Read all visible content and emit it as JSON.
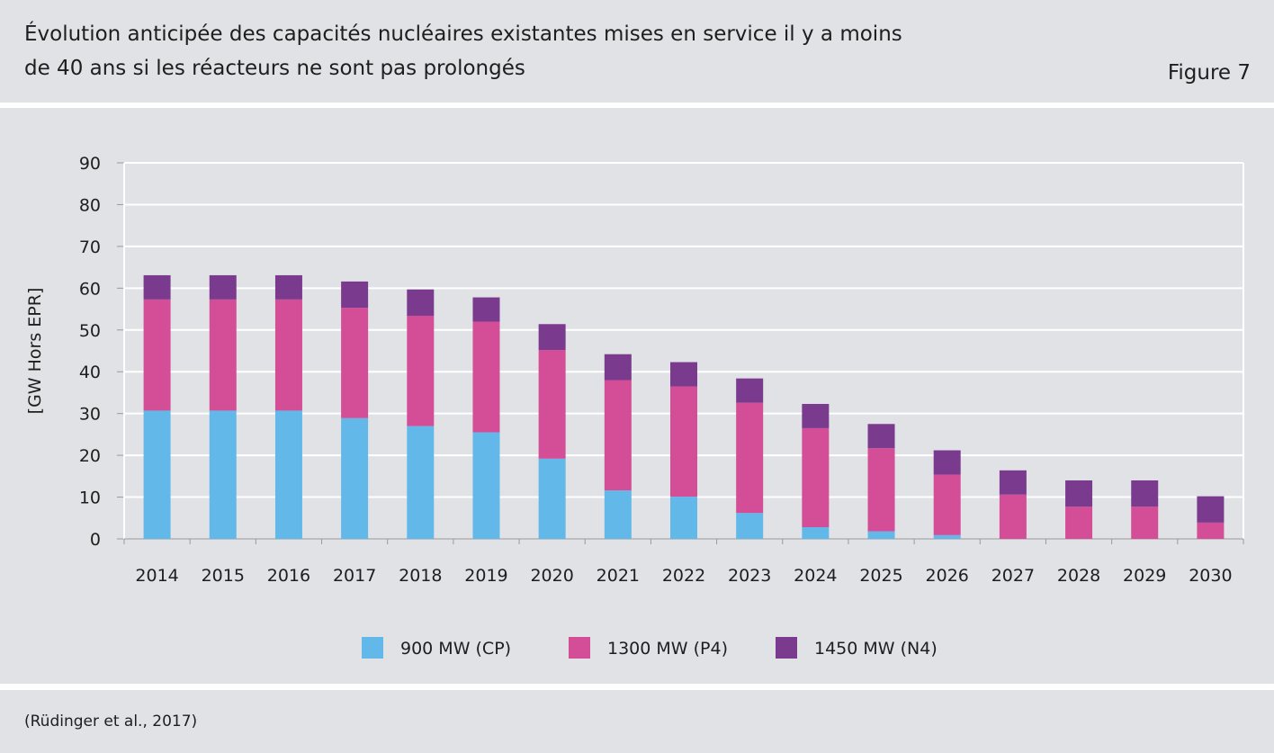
{
  "header": {
    "title_line1": "Évolution anticipée des capacités nucléaires existantes mises en service il y a moins",
    "title_line2": "de 40 ans si les réacteurs ne sont pas prolongés",
    "figure_label": "Figure 7"
  },
  "footer": {
    "source": "(Rüdinger et al., 2017)"
  },
  "chart_data": {
    "type": "bar",
    "stacked": true,
    "title": "Évolution anticipée des capacités nucléaires existantes mises en service il y a moins de 40 ans si les réacteurs ne sont pas prolongés",
    "xlabel": "",
    "ylabel": "[GW Hors EPR]",
    "ylim": [
      0,
      90
    ],
    "yticks": [
      0,
      10,
      20,
      30,
      40,
      50,
      60,
      70,
      80,
      90
    ],
    "grid": true,
    "legend_position": "bottom",
    "categories": [
      "2014",
      "2015",
      "2016",
      "2017",
      "2018",
      "2019",
      "2020",
      "2021",
      "2022",
      "2023",
      "2024",
      "2025",
      "2026",
      "2027",
      "2028",
      "2029",
      "2030"
    ],
    "series": [
      {
        "name": "900 MW (CP)",
        "color": "#62b9e9",
        "values": [
          30.7,
          30.7,
          30.7,
          28.9,
          27.0,
          25.5,
          19.2,
          11.6,
          10.1,
          6.2,
          2.8,
          1.8,
          0.9,
          0,
          0,
          0,
          0
        ]
      },
      {
        "name": "1300 MW (P4)",
        "color": "#d44d97",
        "values": [
          26.6,
          26.6,
          26.6,
          26.4,
          26.4,
          26.5,
          26.0,
          26.4,
          26.4,
          26.4,
          23.7,
          19.9,
          14.5,
          10.6,
          7.7,
          7.7,
          3.9
        ]
      },
      {
        "name": "1450 MW (N4)",
        "color": "#7a3b8e",
        "values": [
          5.8,
          5.8,
          5.8,
          6.3,
          6.3,
          5.8,
          6.2,
          6.2,
          5.8,
          5.8,
          5.8,
          5.8,
          5.8,
          5.8,
          6.3,
          6.3,
          6.3
        ]
      }
    ]
  }
}
